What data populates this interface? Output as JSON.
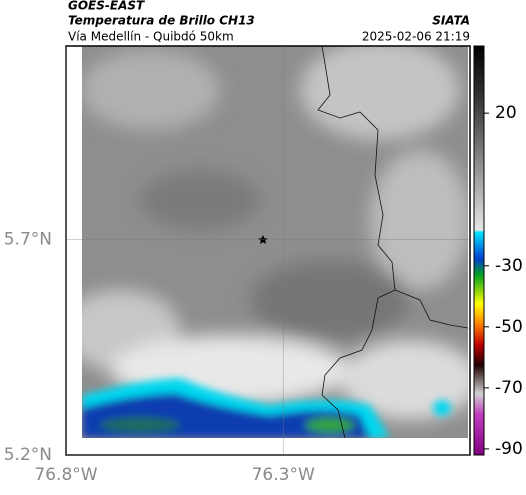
{
  "header": {
    "title": "GOES-EAST",
    "subtitle": "Temperatura de Brillo CH13",
    "route": "Vía Medellín - Quibdó 50km",
    "source": "SIATA",
    "timestamp": "2025-02-06 21:19"
  },
  "map": {
    "xlim": [
      -76.8,
      -75.87
    ],
    "ylim": [
      5.2,
      6.15
    ],
    "xticks": [
      {
        "value": -76.8,
        "label": "76.8°W"
      },
      {
        "value": -76.3,
        "label": "76.3°W"
      }
    ],
    "yticks": [
      {
        "value": 5.7,
        "label": "5.7°N"
      },
      {
        "value": 5.2,
        "label": "5.2°N"
      }
    ]
  },
  "colorbar": {
    "lim": [
      -92,
      42
    ],
    "ticks": [
      20,
      -30,
      -50,
      -70,
      -90
    ]
  }
}
